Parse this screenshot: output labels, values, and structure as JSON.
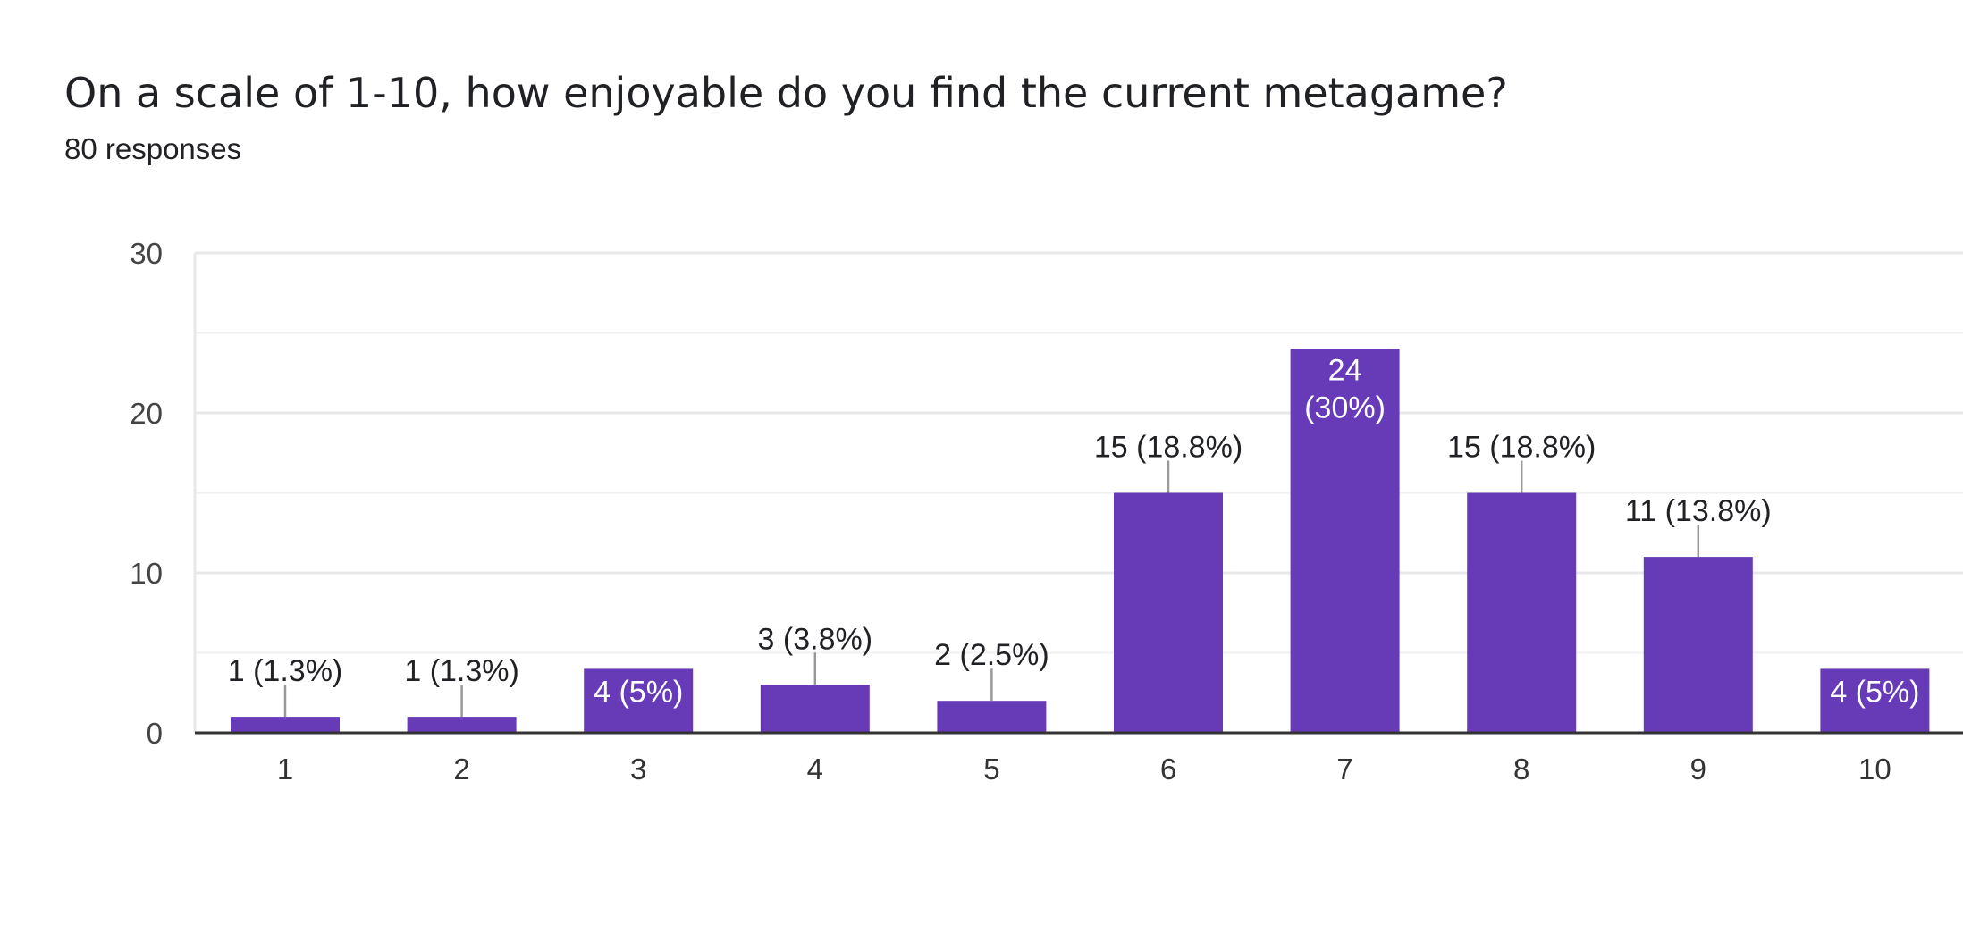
{
  "header": {
    "title": "On a scale of 1-10, how enjoyable do you find the current metagame?",
    "subtitle": "80 responses"
  },
  "colors": {
    "bar": "#673ab7",
    "grid": "#e8e8e8",
    "axis": "#333333",
    "label_outside": "#202124",
    "label_inside": "#ffffff",
    "leader": "#999999"
  },
  "chart_data": {
    "type": "bar",
    "categories": [
      "1",
      "2",
      "3",
      "4",
      "5",
      "6",
      "7",
      "8",
      "9",
      "10"
    ],
    "values": [
      1,
      1,
      4,
      3,
      2,
      15,
      24,
      15,
      11,
      4
    ],
    "data_labels": [
      "1 (1.3%)",
      "1 (1.3%)",
      "4 (5%)",
      "3 (3.8%)",
      "2 (2.5%)",
      "15 (18.8%)",
      "24 (30%)",
      "15 (18.8%)",
      "11 (13.8%)",
      "4 (5%)"
    ],
    "label_inside": [
      false,
      false,
      true,
      false,
      false,
      false,
      true,
      false,
      false,
      true
    ],
    "ylim": [
      0,
      30
    ],
    "yticks": [
      0,
      10,
      20,
      30
    ],
    "minor_gridlines": [
      5,
      15,
      25
    ],
    "grid": true,
    "legend": "none",
    "xlabel": "",
    "ylabel": ""
  }
}
